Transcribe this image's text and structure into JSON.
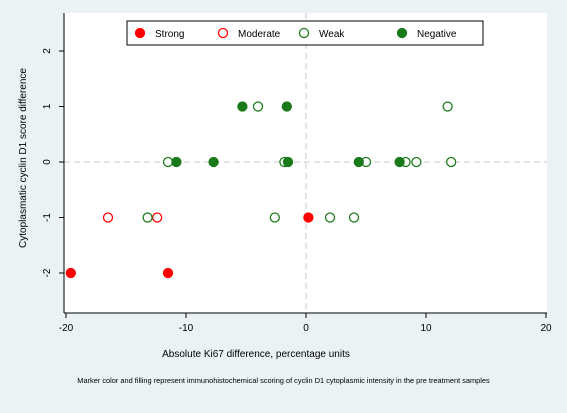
{
  "chart_data": {
    "type": "scatter",
    "xlabel": "Absolute Ki67 difference, percentage units",
    "ylabel": "Cytoplasmatic cyclin D1 score difference",
    "xlim": [
      -20,
      20
    ],
    "ylim": [
      -2.5,
      2.5
    ],
    "x_ticks": [
      -20,
      -10,
      0,
      10,
      20
    ],
    "y_ticks": [
      -2,
      -1,
      0,
      1,
      2
    ],
    "reference_lines": {
      "x": 0,
      "y": 0
    },
    "legend_position": "top",
    "series": [
      {
        "name": "Strong",
        "color": "#ff0000",
        "filled": true,
        "points": [
          [
            -19.6,
            -2
          ],
          [
            -11.5,
            -2
          ],
          [
            0.2,
            -1
          ]
        ]
      },
      {
        "name": "Moderate",
        "color": "#ff0000",
        "filled": false,
        "points": [
          [
            -16.5,
            -1
          ],
          [
            -12.4,
            -1
          ]
        ]
      },
      {
        "name": "Weak",
        "color": "#1a7a1a",
        "filled": false,
        "points": [
          [
            -13.2,
            -1
          ],
          [
            -2.6,
            -1
          ],
          [
            2.0,
            -1
          ],
          [
            4.0,
            -1
          ],
          [
            -11.5,
            0
          ],
          [
            -1.8,
            0
          ],
          [
            5.0,
            0
          ],
          [
            8.3,
            0
          ],
          [
            9.2,
            0
          ],
          [
            12.1,
            0
          ],
          [
            -4.0,
            1
          ],
          [
            11.8,
            1
          ]
        ]
      },
      {
        "name": "Negative",
        "color": "#1a7a1a",
        "filled": true,
        "points": [
          [
            -10.8,
            0
          ],
          [
            -7.7,
            0
          ],
          [
            -1.5,
            0
          ],
          [
            4.4,
            0
          ],
          [
            7.8,
            0
          ],
          [
            -5.3,
            1
          ],
          [
            -1.6,
            1
          ]
        ]
      }
    ]
  },
  "caption": "Marker color and filling represent immunohistochemical scoring of cyclin D1 cytoplasmic intensity  in the pre treatment samples"
}
